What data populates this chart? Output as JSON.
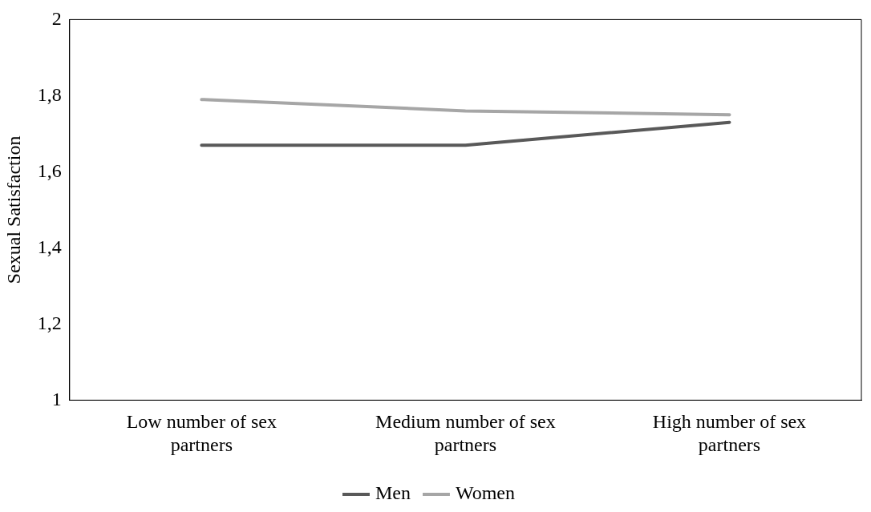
{
  "chart_data": {
    "type": "line",
    "ylabel": "Sexual Satisfaction",
    "categories": [
      "Low number of sex partners",
      "Medium number of sex partners",
      "High number of sex partners"
    ],
    "series": [
      {
        "name": "Men",
        "color": "#595959",
        "values": [
          1.67,
          1.67,
          1.73
        ]
      },
      {
        "name": "Women",
        "color": "#a6a6a6",
        "values": [
          1.79,
          1.76,
          1.75
        ]
      }
    ],
    "ylim": [
      1,
      2
    ],
    "yticks": [
      1,
      {
        "value": 1.2,
        "label": "1,2"
      },
      {
        "value": 1.4,
        "label": "1,4"
      },
      {
        "value": 1.6,
        "label": "1,6"
      },
      {
        "value": 1.8,
        "label": "1,8"
      },
      2
    ],
    "grid": false,
    "legend": "bottom",
    "marker": "none",
    "line_style": "solid"
  }
}
